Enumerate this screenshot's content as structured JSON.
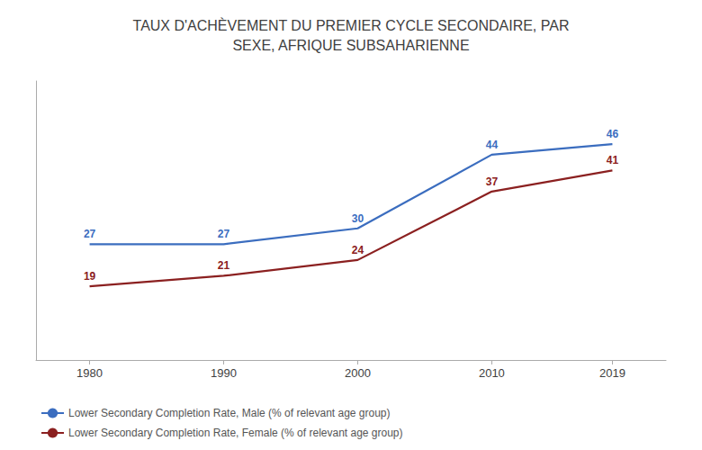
{
  "chart_data": {
    "type": "line",
    "title": "TAUX D'ACHÈVEMENT DU PREMIER CYCLE SECONDAIRE, PAR\nSEXE, AFRIQUE SUBSAHARIENNE",
    "x": [
      1980,
      1990,
      2000,
      2010,
      2019
    ],
    "series": [
      {
        "name": "Lower Secondary Completion Rate, Male (% of relevant age group)",
        "color": "#3B6DBF",
        "values": [
          27,
          27,
          30,
          44,
          46
        ]
      },
      {
        "name": "Lower Secondary Completion Rate, Female (% of relevant age group)",
        "color": "#8B2020",
        "values": [
          19,
          21,
          24,
          37,
          41
        ]
      }
    ],
    "xlim": [
      1976,
      2023
    ],
    "xticks": [
      1980,
      1990,
      2000,
      2010,
      2019
    ],
    "ylim": [
      5,
      58
    ],
    "tick_labels": "x",
    "grid": false,
    "legend": "lower left",
    "data_labels": true
  }
}
